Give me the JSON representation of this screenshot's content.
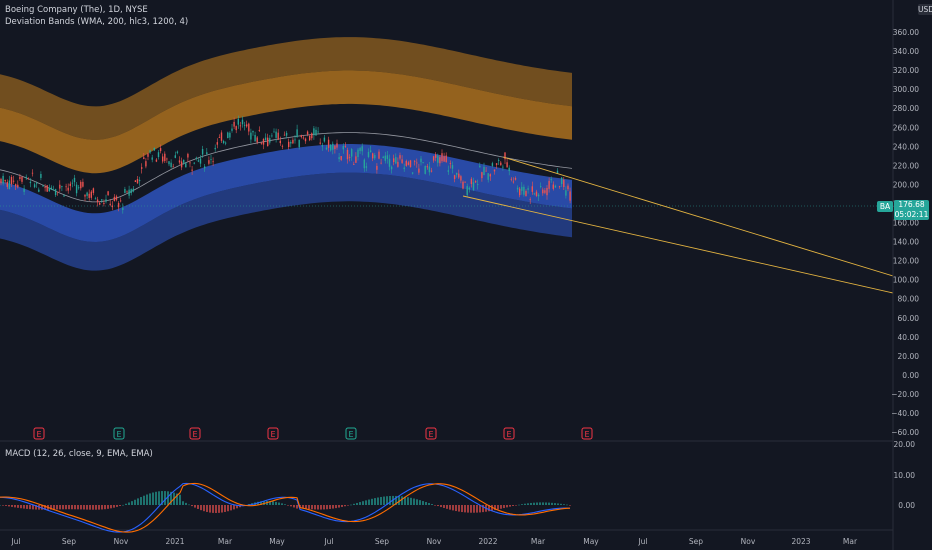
{
  "header": {
    "symbol_title": "Boeing Company (The), 1D, NYSE",
    "indicator": "Deviation Bands (WMA, 200, hlc3, 1200, 4)",
    "currency": "USD",
    "partial_top_tick": "38"
  },
  "price_axis": {
    "ticks": [
      "360.00",
      "340.00",
      "320.00",
      "300.00",
      "280.00",
      "260.00",
      "240.00",
      "220.00",
      "200.00",
      "180.00",
      "160.00",
      "140.00",
      "120.00",
      "100.00",
      "80.00",
      "60.00",
      "40.00",
      "20.00",
      "0.00",
      "−20.00",
      "−40.00",
      "−60.00"
    ],
    "last_price_symbol": "BA",
    "last_price": "176.68",
    "countdown": "05:02:11"
  },
  "macd": {
    "title": "MACD (12, 26, close, 9, EMA, EMA)",
    "ticks": [
      "20.00",
      "10.00",
      "0.00"
    ]
  },
  "time_axis": {
    "labels": [
      "Jul",
      "Sep",
      "Nov",
      "2021",
      "Mar",
      "May",
      "Jul",
      "Sep",
      "Nov",
      "2022",
      "Mar",
      "May",
      "Jul",
      "Sep",
      "Nov",
      "2023",
      "Mar"
    ]
  },
  "events": {
    "markers": [
      {
        "label": "E",
        "color": "#f23645"
      },
      {
        "label": "E",
        "color": "#22ab94"
      },
      {
        "label": "E",
        "color": "#f23645"
      },
      {
        "label": "E",
        "color": "#f23645"
      },
      {
        "label": "E",
        "color": "#22ab94"
      },
      {
        "label": "E",
        "color": "#f23645"
      },
      {
        "label": "E",
        "color": "#f23645"
      },
      {
        "label": "E",
        "color": "#f23645"
      }
    ]
  },
  "colors": {
    "background": "#131722",
    "upper_band": "#c07c1e",
    "lower_band": "#2f58c8",
    "up_candle": "#26a69a",
    "down_candle": "#ef5350",
    "trendline": "#e3b341",
    "macd_line": "#2962ff",
    "signal_line": "#ff6d00"
  },
  "icons": {
    "events": "earnings-event-icon"
  }
}
